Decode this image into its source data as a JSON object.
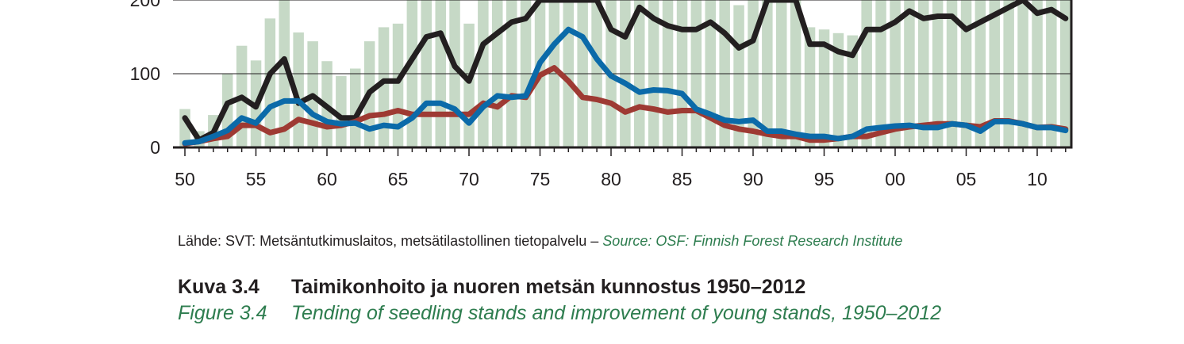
{
  "chart_data": {
    "type": "bar+line",
    "x": [
      1950,
      1951,
      1952,
      1953,
      1954,
      1955,
      1956,
      1957,
      1958,
      1959,
      1960,
      1961,
      1962,
      1963,
      1964,
      1965,
      1966,
      1967,
      1968,
      1969,
      1970,
      1971,
      1972,
      1973,
      1974,
      1975,
      1976,
      1977,
      1978,
      1979,
      1980,
      1981,
      1982,
      1983,
      1984,
      1985,
      1986,
      1987,
      1988,
      1989,
      1990,
      1991,
      1992,
      1993,
      1994,
      1995,
      1996,
      1997,
      1998,
      1999,
      2000,
      2001,
      2002,
      2003,
      2004,
      2005,
      2006,
      2007,
      2008,
      2009,
      2010,
      2011,
      2012
    ],
    "x_tick_labels": [
      "50",
      "55",
      "60",
      "65",
      "70",
      "75",
      "80",
      "85",
      "90",
      "95",
      "00",
      "05",
      "10"
    ],
    "y_tick_labels": [
      "0",
      "100",
      "200"
    ],
    "ylim": [
      0,
      200
    ],
    "bars": [
      52,
      22,
      44,
      100,
      138,
      118,
      175,
      200,
      156,
      144,
      117,
      97,
      107,
      144,
      163,
      168,
      200,
      200,
      200,
      200,
      168,
      200,
      200,
      200,
      200,
      200,
      200,
      200,
      200,
      200,
      200,
      200,
      200,
      200,
      200,
      200,
      200,
      200,
      200,
      193,
      200,
      200,
      200,
      200,
      163,
      160,
      155,
      152,
      200,
      200,
      200,
      200,
      200,
      200,
      200,
      200,
      200,
      200,
      200,
      200,
      200,
      200,
      200
    ],
    "series": [
      {
        "color": "#231f20",
        "values": [
          40,
          10,
          20,
          60,
          68,
          55,
          100,
          120,
          60,
          70,
          55,
          40,
          40,
          75,
          90,
          90,
          120,
          150,
          155,
          110,
          90,
          140,
          155,
          170,
          175,
          200,
          200,
          200,
          200,
          200,
          160,
          150,
          190,
          175,
          165,
          160,
          160,
          170,
          155,
          135,
          145,
          200,
          200,
          200,
          140,
          140,
          130,
          125,
          160,
          160,
          170,
          185,
          175,
          178,
          178,
          160,
          170,
          180,
          190,
          200,
          182,
          187,
          175
        ]
      },
      {
        "color": "#9e3a33",
        "values": [
          5,
          8,
          12,
          15,
          30,
          30,
          20,
          25,
          38,
          33,
          28,
          30,
          35,
          43,
          45,
          50,
          45,
          45,
          45,
          45,
          45,
          60,
          55,
          70,
          68,
          98,
          108,
          90,
          68,
          65,
          60,
          48,
          55,
          52,
          48,
          50,
          50,
          40,
          30,
          25,
          22,
          18,
          15,
          15,
          10,
          10,
          12,
          15,
          15,
          20,
          25,
          28,
          30,
          32,
          32,
          30,
          28,
          36,
          36,
          32,
          27,
          28,
          25
        ]
      },
      {
        "color": "#0b6aa9",
        "values": [
          6,
          8,
          15,
          23,
          40,
          33,
          55,
          63,
          63,
          45,
          35,
          32,
          33,
          25,
          30,
          28,
          40,
          60,
          60,
          52,
          33,
          55,
          70,
          68,
          70,
          115,
          140,
          160,
          150,
          120,
          97,
          87,
          75,
          78,
          77,
          73,
          52,
          45,
          37,
          35,
          37,
          22,
          22,
          18,
          15,
          15,
          12,
          15,
          25,
          27,
          29,
          30,
          27,
          27,
          32,
          30,
          22,
          35,
          35,
          32,
          27,
          27,
          23
        ]
      }
    ]
  },
  "source": {
    "fi": "Lähde: SVT: Metsäntutkimuslaitos, metsätilastollinen tietopalvelu –",
    "en": "Source: OSF: Finnish Forest Research Institute"
  },
  "caption": {
    "fi_number": "Kuva 3.4",
    "fi_title": "Taimikonhoito ja nuoren metsän kunnostus 1950–2012",
    "en_number": "Figure 3.4",
    "en_title": "Tending of seedling stands and improvement of young stands, 1950–2012"
  },
  "colors": {
    "bar": "#c6d9c6",
    "text_fi": "#231f20",
    "text_en": "#2e7d4f"
  }
}
